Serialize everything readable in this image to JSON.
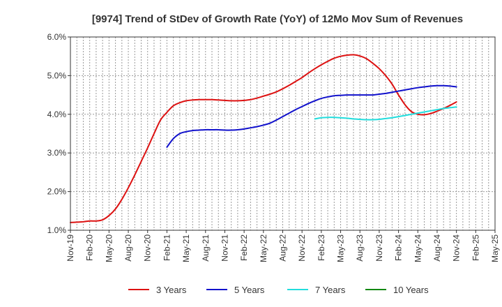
{
  "chart_data": {
    "type": "line",
    "title": "[9974]  Trend of StDev of Growth Rate (YoY) of 12Mo Mov Sum of Revenues",
    "xlabel": "",
    "ylabel": "",
    "ylim": [
      1.0,
      6.0
    ],
    "y_ticks": [
      "1.0%",
      "2.0%",
      "3.0%",
      "4.0%",
      "5.0%",
      "6.0%"
    ],
    "x_ticks": [
      "Nov-19",
      "Feb-20",
      "May-20",
      "Aug-20",
      "Nov-20",
      "Feb-21",
      "May-21",
      "Aug-21",
      "Nov-21",
      "Feb-22",
      "May-22",
      "Aug-22",
      "Nov-22",
      "Feb-23",
      "May-23",
      "Aug-23",
      "Nov-23",
      "Feb-24",
      "May-24",
      "Aug-24",
      "Nov-24",
      "Feb-25",
      "May-25"
    ],
    "x_unit": "months since Nov-19",
    "legend_position": "bottom",
    "series": [
      {
        "name": "3 Years",
        "color": "#dd1111",
        "points": [
          [
            0,
            1.2
          ],
          [
            1,
            1.21
          ],
          [
            2,
            1.22
          ],
          [
            3,
            1.24
          ],
          [
            4,
            1.24
          ],
          [
            5,
            1.27
          ],
          [
            6,
            1.38
          ],
          [
            7,
            1.55
          ],
          [
            8,
            1.8
          ],
          [
            9,
            2.1
          ],
          [
            10,
            2.43
          ],
          [
            11,
            2.78
          ],
          [
            12,
            3.13
          ],
          [
            13,
            3.5
          ],
          [
            14,
            3.85
          ],
          [
            15,
            4.05
          ],
          [
            16,
            4.22
          ],
          [
            17,
            4.3
          ],
          [
            18,
            4.35
          ],
          [
            19,
            4.37
          ],
          [
            20,
            4.38
          ],
          [
            21,
            4.38
          ],
          [
            22,
            4.38
          ],
          [
            23,
            4.37
          ],
          [
            24,
            4.36
          ],
          [
            25,
            4.35
          ],
          [
            26,
            4.35
          ],
          [
            27,
            4.36
          ],
          [
            28,
            4.38
          ],
          [
            29,
            4.42
          ],
          [
            30,
            4.47
          ],
          [
            31,
            4.52
          ],
          [
            32,
            4.58
          ],
          [
            33,
            4.66
          ],
          [
            34,
            4.75
          ],
          [
            35,
            4.85
          ],
          [
            36,
            4.95
          ],
          [
            37,
            5.07
          ],
          [
            38,
            5.18
          ],
          [
            39,
            5.28
          ],
          [
            40,
            5.37
          ],
          [
            41,
            5.45
          ],
          [
            42,
            5.5
          ],
          [
            43,
            5.53
          ],
          [
            44,
            5.54
          ],
          [
            45,
            5.51
          ],
          [
            46,
            5.44
          ],
          [
            47,
            5.32
          ],
          [
            48,
            5.18
          ],
          [
            49,
            5.0
          ],
          [
            50,
            4.78
          ],
          [
            51,
            4.5
          ],
          [
            52,
            4.25
          ],
          [
            53,
            4.07
          ],
          [
            54,
            4.0
          ],
          [
            55,
            3.99
          ],
          [
            56,
            4.02
          ],
          [
            57,
            4.08
          ],
          [
            58,
            4.15
          ],
          [
            59,
            4.23
          ],
          [
            60,
            4.32
          ]
        ]
      },
      {
        "name": "5 Years",
        "color": "#1111cc",
        "points": [
          [
            15,
            3.15
          ],
          [
            16,
            3.37
          ],
          [
            17,
            3.5
          ],
          [
            18,
            3.55
          ],
          [
            19,
            3.58
          ],
          [
            20,
            3.59
          ],
          [
            21,
            3.6
          ],
          [
            22,
            3.6
          ],
          [
            23,
            3.6
          ],
          [
            24,
            3.59
          ],
          [
            25,
            3.59
          ],
          [
            26,
            3.6
          ],
          [
            27,
            3.62
          ],
          [
            28,
            3.65
          ],
          [
            29,
            3.68
          ],
          [
            30,
            3.72
          ],
          [
            31,
            3.77
          ],
          [
            32,
            3.85
          ],
          [
            33,
            3.94
          ],
          [
            34,
            4.03
          ],
          [
            35,
            4.12
          ],
          [
            36,
            4.2
          ],
          [
            37,
            4.28
          ],
          [
            38,
            4.35
          ],
          [
            39,
            4.41
          ],
          [
            40,
            4.45
          ],
          [
            41,
            4.48
          ],
          [
            42,
            4.49
          ],
          [
            43,
            4.5
          ],
          [
            44,
            4.5
          ],
          [
            45,
            4.5
          ],
          [
            46,
            4.5
          ],
          [
            47,
            4.5
          ],
          [
            48,
            4.52
          ],
          [
            49,
            4.54
          ],
          [
            50,
            4.57
          ],
          [
            51,
            4.6
          ],
          [
            52,
            4.63
          ],
          [
            53,
            4.66
          ],
          [
            54,
            4.69
          ],
          [
            55,
            4.71
          ],
          [
            56,
            4.73
          ],
          [
            57,
            4.74
          ],
          [
            58,
            4.74
          ],
          [
            59,
            4.73
          ],
          [
            60,
            4.71
          ]
        ]
      },
      {
        "name": "7 Years",
        "color": "#22dddd",
        "points": [
          [
            38,
            3.88
          ],
          [
            39,
            3.91
          ],
          [
            40,
            3.92
          ],
          [
            41,
            3.92
          ],
          [
            42,
            3.91
          ],
          [
            43,
            3.9
          ],
          [
            44,
            3.88
          ],
          [
            45,
            3.87
          ],
          [
            46,
            3.86
          ],
          [
            47,
            3.86
          ],
          [
            48,
            3.87
          ],
          [
            49,
            3.89
          ],
          [
            50,
            3.91
          ],
          [
            51,
            3.94
          ],
          [
            52,
            3.97
          ],
          [
            53,
            4.0
          ],
          [
            54,
            4.03
          ],
          [
            55,
            4.06
          ],
          [
            56,
            4.09
          ],
          [
            57,
            4.12
          ],
          [
            58,
            4.15
          ],
          [
            59,
            4.17
          ],
          [
            60,
            4.19
          ]
        ]
      },
      {
        "name": "10 Years",
        "color": "#118811",
        "points": []
      }
    ]
  }
}
